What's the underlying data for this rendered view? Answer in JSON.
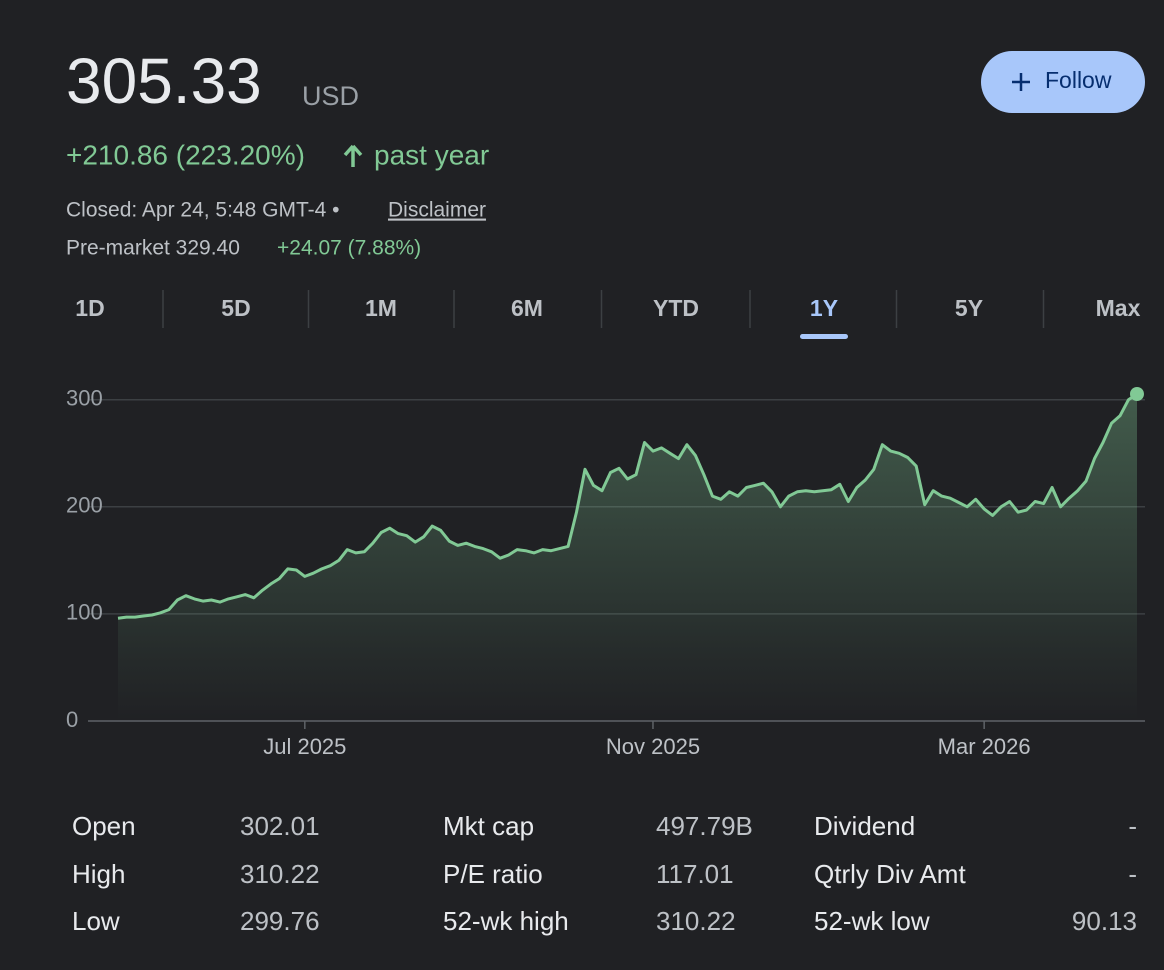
{
  "header": {
    "price": "305.33",
    "currency": "USD",
    "change": "+210.86 (223.20%)",
    "period": "past year",
    "status": "Closed: Apr 24, 5:48 GMT-4 •",
    "disclaimer": "Disclaimer",
    "premarket": "Pre-market 329.40",
    "premarket_change": "+24.07 (7.88%)",
    "follow": "Follow"
  },
  "tabs": {
    "items": [
      "1D",
      "5D",
      "1M",
      "6M",
      "YTD",
      "1Y",
      "5Y",
      "Max"
    ],
    "selected": 5
  },
  "chart_data": {
    "type": "line",
    "color": "#81c995",
    "grid": true,
    "categories": [
      null,
      null,
      null,
      null,
      null,
      null,
      null,
      null,
      null,
      null,
      null,
      null,
      null,
      null,
      null,
      null,
      null,
      null,
      null,
      null,
      null,
      null,
      "Jul 2025",
      null,
      null,
      null,
      null,
      null,
      null,
      null,
      null,
      null,
      null,
      null,
      null,
      null,
      null,
      null,
      null,
      null,
      null,
      null,
      null,
      null,
      null,
      null,
      null,
      null,
      null,
      null,
      null,
      null,
      null,
      null,
      null,
      null,
      null,
      null,
      null,
      null,
      null,
      null,
      null,
      "Nov 2025",
      null,
      null,
      null,
      null,
      null,
      null,
      null,
      null,
      null,
      null,
      null,
      null,
      null,
      null,
      null,
      null,
      null,
      null,
      null,
      null,
      null,
      null,
      null,
      null,
      null,
      null,
      null,
      null,
      null,
      null,
      null,
      null,
      null,
      null,
      null,
      null,
      null,
      null,
      "Mar 2026",
      null,
      null,
      null,
      null,
      null,
      null,
      null,
      null,
      null,
      null,
      null,
      null,
      null,
      null,
      null,
      null,
      null,
      null
    ],
    "values": [
      96,
      97,
      97,
      98,
      99,
      101,
      104,
      113,
      117,
      114,
      112,
      113,
      111,
      114,
      116,
      118,
      115,
      122,
      128,
      133,
      142,
      141,
      135,
      138,
      142,
      145,
      150,
      160,
      157,
      158,
      166,
      176,
      180,
      175,
      173,
      167,
      172,
      182,
      178,
      168,
      164,
      166,
      163,
      161,
      158,
      152,
      155,
      160,
      159,
      157,
      160,
      159,
      161,
      163,
      195,
      235,
      220,
      215,
      232,
      236,
      226,
      230,
      260,
      252,
      255,
      250,
      245,
      258,
      248,
      230,
      210,
      207,
      214,
      210,
      218,
      220,
      222,
      214,
      200,
      210,
      214,
      215,
      214,
      215,
      216,
      221,
      205,
      218,
      225,
      235,
      258,
      252,
      250,
      246,
      238,
      202,
      215,
      210,
      208,
      204,
      200,
      207,
      198,
      192,
      200,
      205,
      195,
      197,
      205,
      203,
      218,
      200,
      208,
      215,
      224,
      245,
      260,
      278,
      285,
      300,
      305.33
    ],
    "ylim": [
      0,
      310
    ],
    "yticks": [
      0,
      100,
      200,
      300
    ]
  },
  "stats": [
    {
      "label": "Open",
      "value": "302.01"
    },
    {
      "label": "High",
      "value": "310.22"
    },
    {
      "label": "Low",
      "value": "299.76"
    },
    {
      "label": "Mkt cap",
      "value": "497.79B"
    },
    {
      "label": "P/E ratio",
      "value": "117.01"
    },
    {
      "label": "52-wk high",
      "value": "310.22"
    },
    {
      "label": "Dividend",
      "value": "-"
    },
    {
      "label": "Qtrly Div Amt",
      "value": "-"
    },
    {
      "label": "52-wk low",
      "value": "90.13"
    }
  ]
}
